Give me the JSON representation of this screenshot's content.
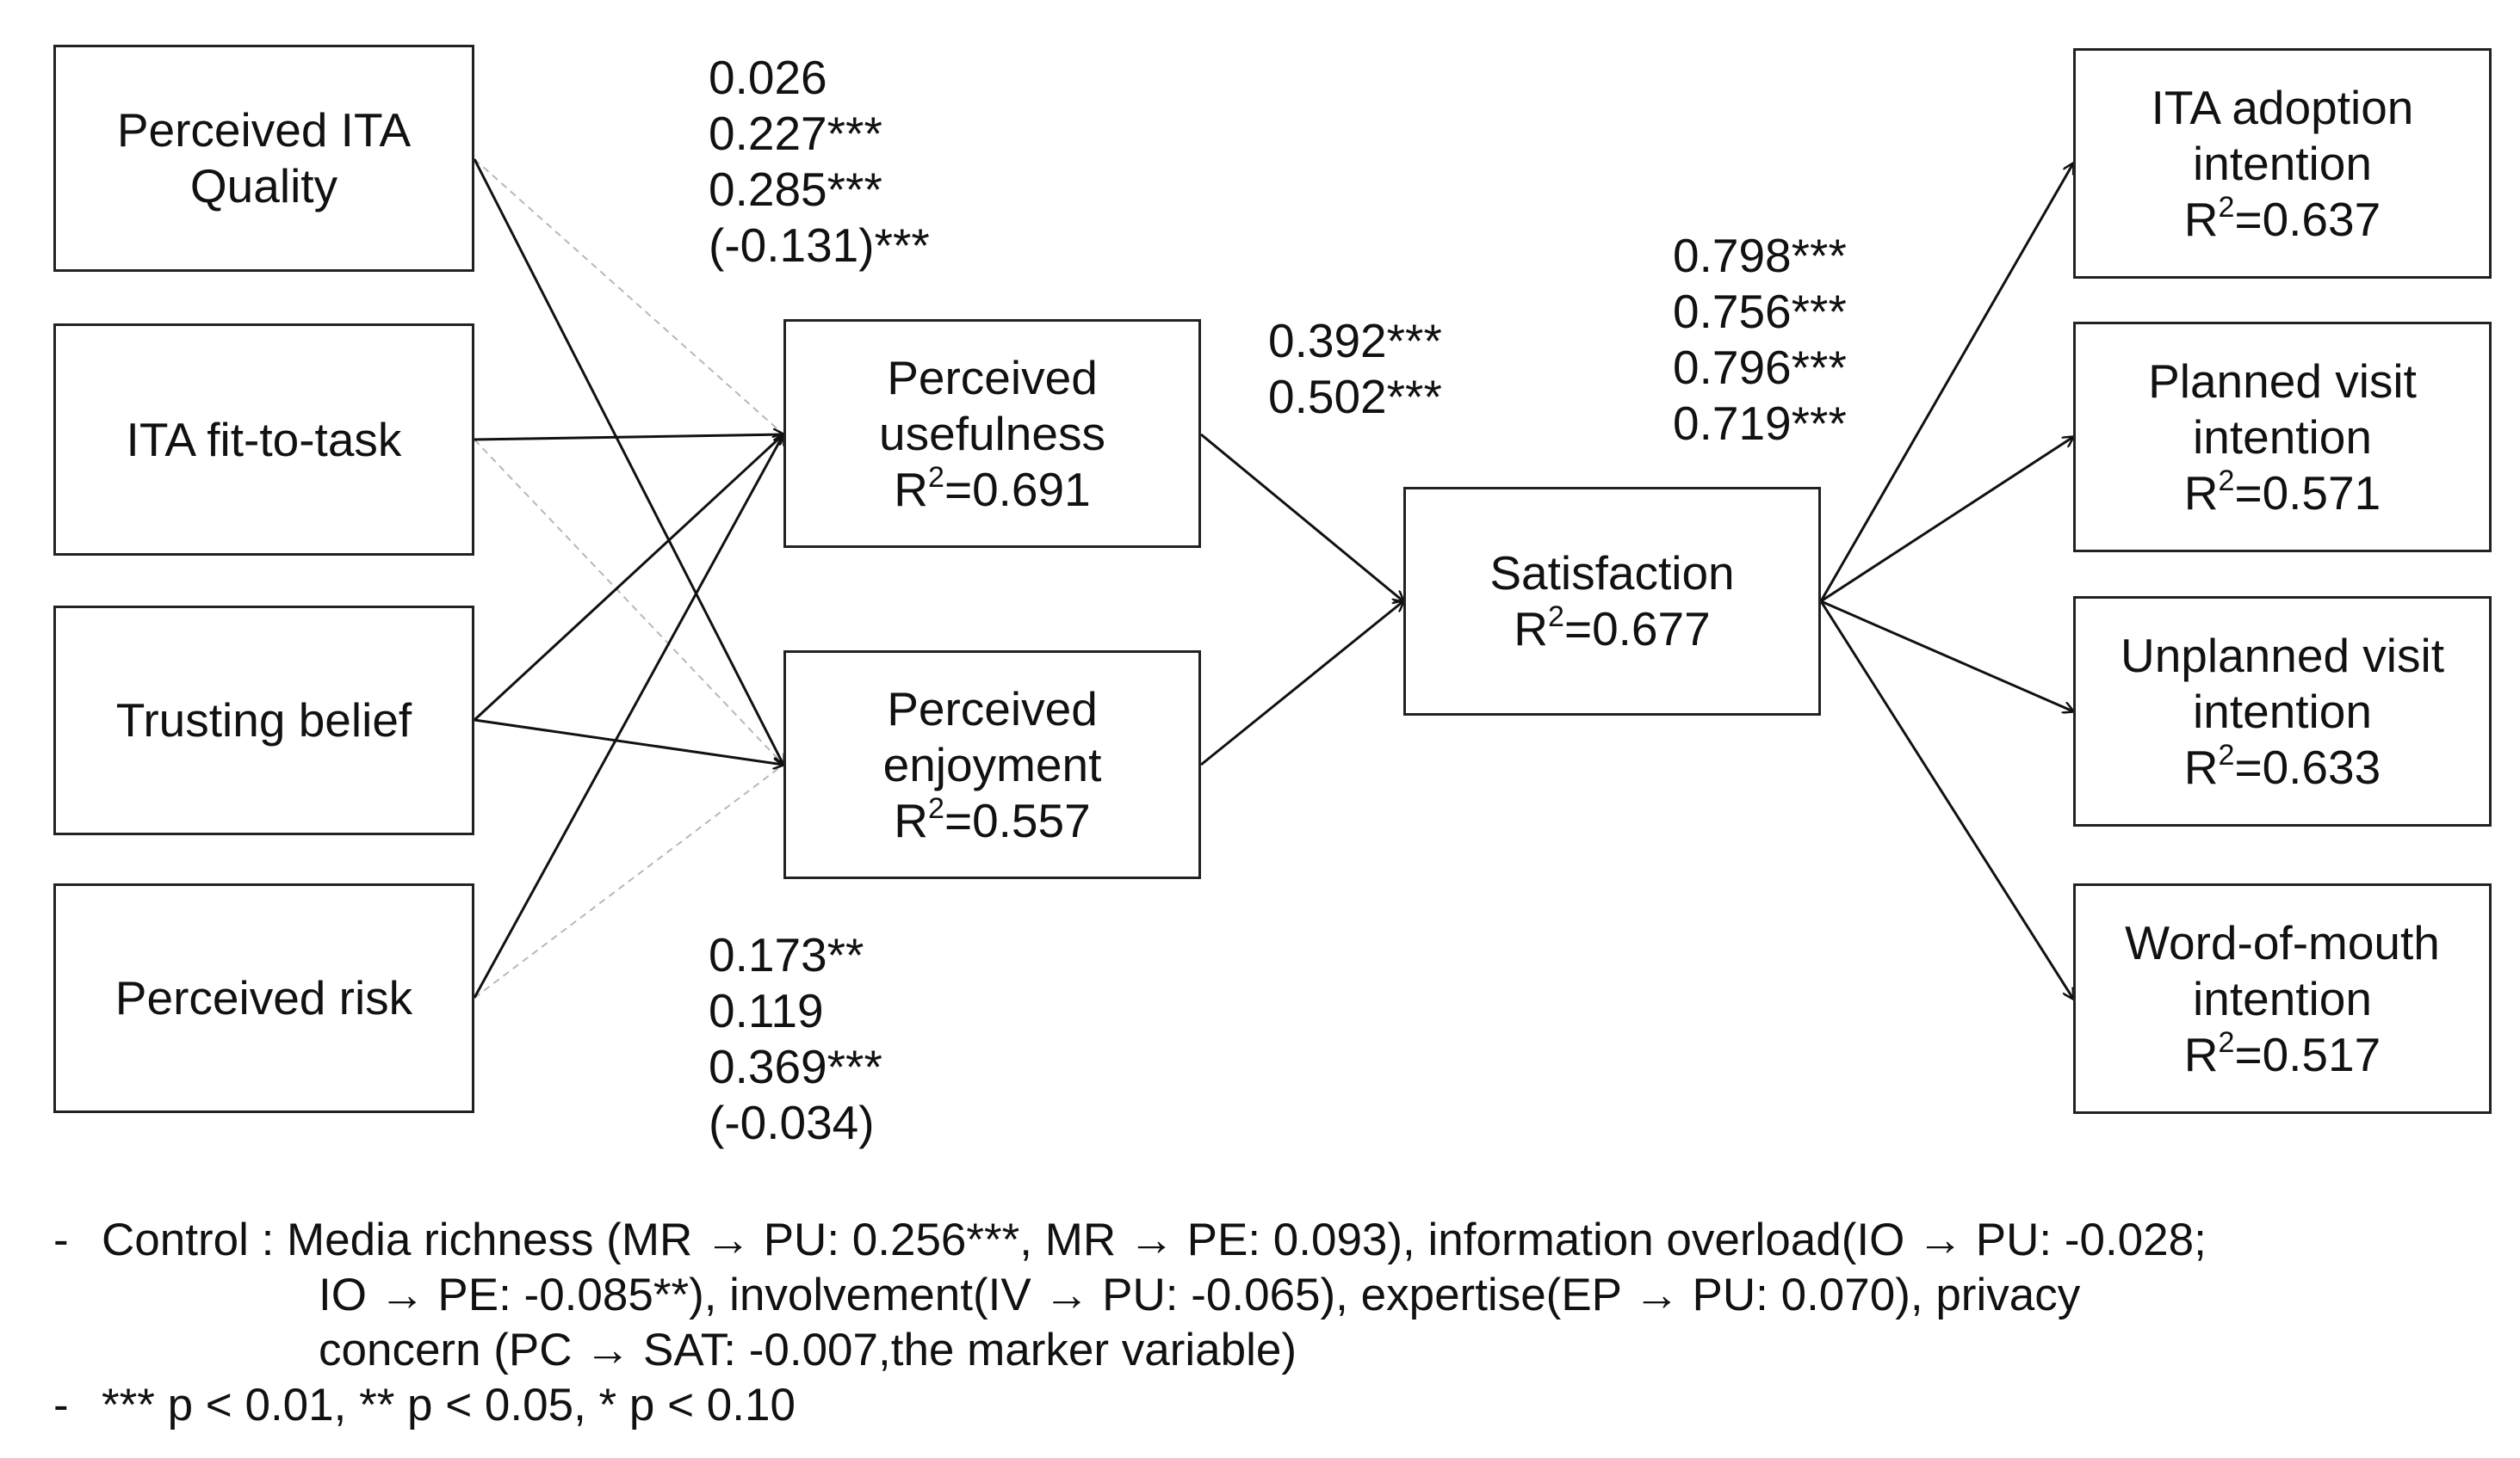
{
  "boxes": {
    "quality": {
      "lines": [
        "Perceived ITA",
        "Quality"
      ]
    },
    "fit": {
      "lines": [
        "ITA fit-to-task"
      ]
    },
    "trust": {
      "lines": [
        "Trusting belief"
      ]
    },
    "risk": {
      "lines": [
        "Perceived risk"
      ]
    },
    "usefulness": {
      "lines": [
        "Perceived",
        "usefulness"
      ],
      "r2": "0.691"
    },
    "enjoyment": {
      "lines": [
        "Perceived",
        "enjoyment"
      ],
      "r2": "0.557"
    },
    "satisfaction": {
      "lines": [
        "Satisfaction"
      ],
      "r2": "0.677"
    },
    "adoption": {
      "lines": [
        "ITA adoption",
        "intention"
      ],
      "r2": "0.637"
    },
    "planned": {
      "lines": [
        "Planned visit",
        "intention"
      ],
      "r2": "0.571"
    },
    "unplanned": {
      "lines": [
        "Unplanned visit",
        "intention"
      ],
      "r2": "0.633"
    },
    "wom": {
      "lines": [
        "Word-of-mouth",
        "intention"
      ],
      "r2": "0.517"
    }
  },
  "r2_prefix": "R",
  "r2_sup": "2",
  "r2_eq": "=",
  "coefficients": {
    "to_usefulness": [
      "0.026",
      "0.227***",
      "0.285***",
      "(-0.131)***"
    ],
    "to_enjoyment": [
      "0.173**",
      "0.119",
      "0.369***",
      "(-0.034)"
    ],
    "to_satisfaction": [
      "0.392***",
      "0.502***"
    ],
    "to_outcomes": [
      "0.798***",
      "0.756***",
      "0.796***",
      "0.719***"
    ]
  },
  "notes": {
    "bullet": "-",
    "control_lines": [
      "Control : Media richness (MR → PU: 0.256***, MR → PE: 0.093), information overload(IO → PU: -0.028;",
      "IO → PE: -0.085**), involvement(IV → PU:  -0.065), expertise(EP → PU: 0.070), privacy",
      "concern (PC → SAT: -0.007,the marker variable)"
    ],
    "significance": "*** p < 0.01, **  p < 0.05, *   p < 0.10"
  }
}
